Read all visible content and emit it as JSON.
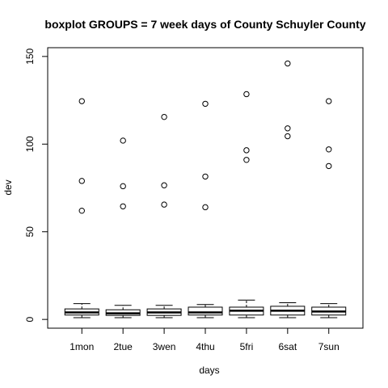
{
  "chart_data": {
    "type": "boxplot",
    "title": "boxplot GROUPS = 7 week days of County Schuyler County",
    "xlabel": "days",
    "ylabel": "dev",
    "ylim": [
      -5,
      155
    ],
    "yticks": [
      0,
      50,
      100,
      150
    ],
    "grid": false,
    "categories": [
      "1mon",
      "2tue",
      "3wen",
      "4thu",
      "5fri",
      "6sat",
      "7sun"
    ],
    "boxes": [
      {
        "whisker_low": 1,
        "q1": 2.5,
        "median": 4,
        "q3": 6,
        "whisker_high": 9,
        "outliers": [
          62,
          79,
          124.5
        ]
      },
      {
        "whisker_low": 1,
        "q1": 2.3,
        "median": 3.5,
        "q3": 5.5,
        "whisker_high": 8,
        "outliers": [
          64.5,
          76,
          102
        ]
      },
      {
        "whisker_low": 1,
        "q1": 2.3,
        "median": 4,
        "q3": 6,
        "whisker_high": 8,
        "outliers": [
          65.5,
          76.5,
          115.5
        ]
      },
      {
        "whisker_low": 1,
        "q1": 2.5,
        "median": 4,
        "q3": 7,
        "whisker_high": 8.5,
        "outliers": [
          64,
          81.5,
          123
        ]
      },
      {
        "whisker_low": 1,
        "q1": 2.5,
        "median": 5,
        "q3": 7,
        "whisker_high": 11,
        "outliers": [
          91,
          96.5,
          128.5
        ]
      },
      {
        "whisker_low": 1,
        "q1": 2.5,
        "median": 5,
        "q3": 7.5,
        "whisker_high": 9.5,
        "outliers": [
          104.5,
          109,
          146
        ]
      },
      {
        "whisker_low": 1,
        "q1": 2.5,
        "median": 4.5,
        "q3": 7,
        "whisker_high": 9,
        "outliers": [
          87.5,
          97,
          124.5
        ]
      }
    ],
    "colors": {
      "stroke": "#000000",
      "fill": "#ffffff",
      "background": "#ffffff"
    }
  }
}
